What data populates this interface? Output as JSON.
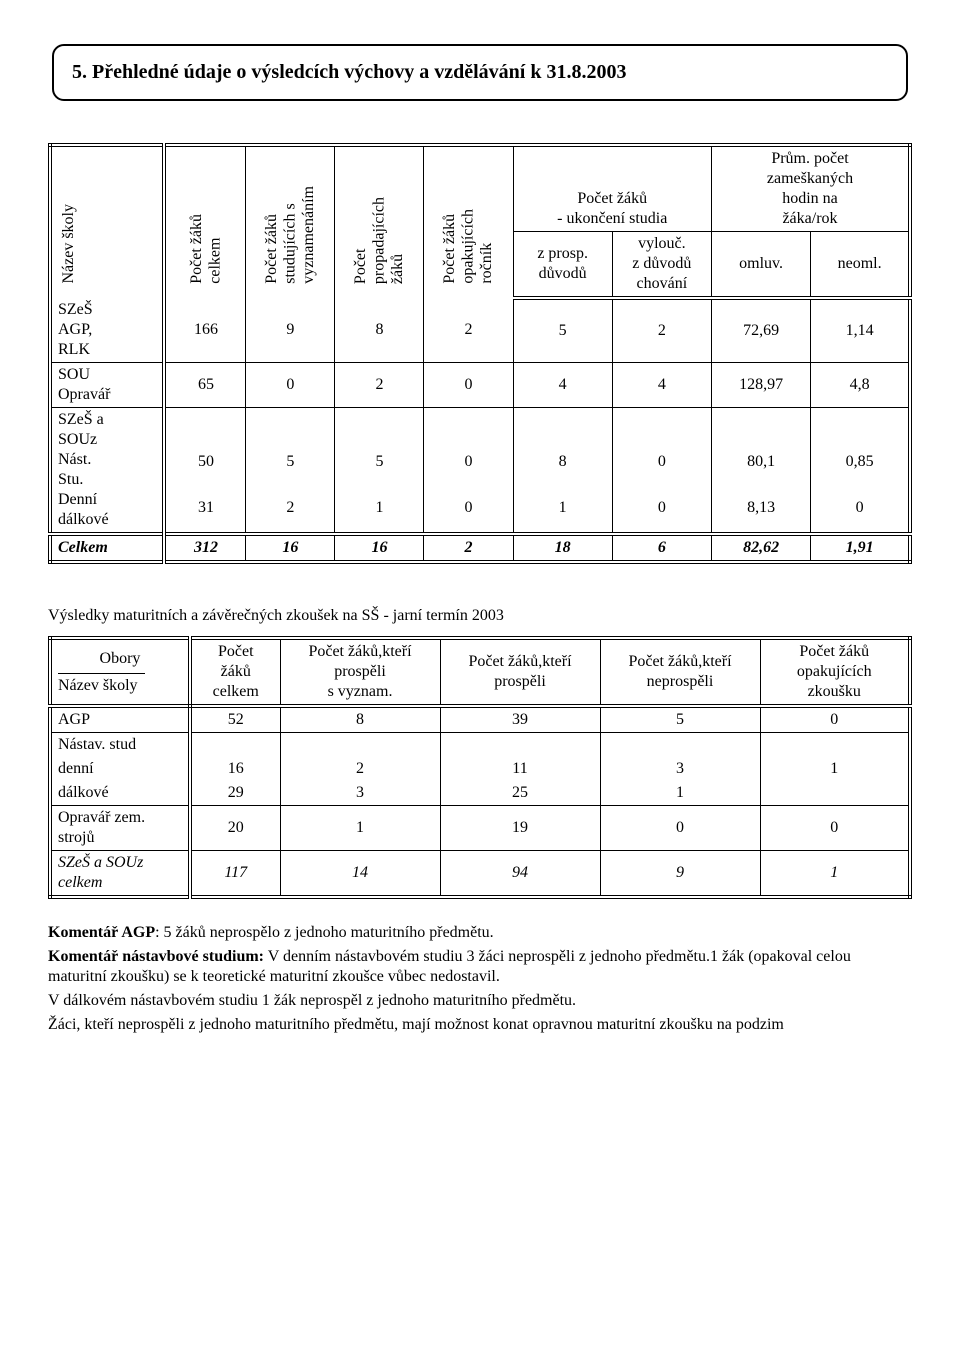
{
  "title": "5. Přehledné údaje o výsledcích výchovy a vzdělávání k 31.8.2003",
  "main_table": {
    "type": "table",
    "columns": [
      {
        "key": "nazev",
        "label": "Název školy",
        "rotated": true,
        "rowheader": true
      },
      {
        "key": "celkem",
        "label": "Počet žáků\ncelkem",
        "rotated": true
      },
      {
        "key": "vyzn",
        "label": "Počet žáků\nstudujících s\nvyznamenáním",
        "rotated": true
      },
      {
        "key": "propad",
        "label": "Počet\npropadajících\nžáků",
        "rotated": true
      },
      {
        "key": "opak",
        "label": "Počet žáků\nopakujících\nročník",
        "rotated": true
      },
      {
        "key": "uk_p",
        "group": "ukonceni",
        "label": "z prosp.\ndůvodů"
      },
      {
        "key": "uk_v",
        "group": "ukonceni",
        "label": "vylouč.\nz důvodů\nchování"
      },
      {
        "key": "zam_o",
        "group": "zameskane",
        "label": "omluv."
      },
      {
        "key": "zam_n",
        "group": "zameskane",
        "label": "neoml."
      }
    ],
    "groups": {
      "ukonceni": {
        "label": "Počet žáků\n- ukončení studia"
      },
      "zameskane": {
        "label": "Prům. počet\nzameškaných\nhodin na\nžáka/rok"
      }
    },
    "row_groups": [
      {
        "label": "SZeŠ\nAGP,\nRLK",
        "rows": [
          [
            "166",
            "9",
            "8",
            "2",
            "5",
            "2",
            "72,69",
            "1,14"
          ]
        ]
      },
      {
        "label": "SOU\nOpravář",
        "rows": [
          [
            "65",
            "0",
            "2",
            "0",
            "4",
            "4",
            "128,97",
            "4,8"
          ]
        ]
      },
      {
        "label_html": "SZeŠ a\nSOUz\nNást.\nStu.\nDenní\ndálkové",
        "label_lines": [
          "SZeŠ a",
          "SOUz",
          "Nást.",
          "Stu.",
          "Denní",
          "dálkové"
        ],
        "rows": [
          [
            "",
            "",
            "",
            "",
            "",
            "",
            "",
            ""
          ],
          [
            "",
            "",
            "",
            "",
            "",
            "",
            "",
            ""
          ],
          [
            "",
            "",
            "",
            "",
            "",
            "",
            "",
            ""
          ],
          [
            "",
            "",
            "",
            "",
            "",
            "",
            "",
            ""
          ],
          [
            "50",
            "5",
            "5",
            "0",
            "8",
            "0",
            "80,1",
            "0,85"
          ],
          [
            "31",
            "2",
            "1",
            "0",
            "1",
            "0",
            "8,13",
            "0"
          ]
        ]
      },
      {
        "label": "Celkem",
        "italic": true,
        "bold": true,
        "rows": [
          [
            "312",
            "16",
            "16",
            "2",
            "18",
            "6",
            "82,62",
            "1,91"
          ]
        ]
      }
    ]
  },
  "subheading": "Výsledky maturitních a závěrečných zkoušek na SŠ - jarní termín 2003",
  "mat_table": {
    "type": "table",
    "columns": [
      {
        "label_top": "Obory",
        "label_bottom": "Název školy",
        "rule": true
      },
      {
        "label": "Počet\nžáků\ncelkem"
      },
      {
        "label": "Počet žáků,kteří\nprospěli\ns vyznam."
      },
      {
        "label": "Počet žáků,kteří\nprospěli"
      },
      {
        "label": "Počet žáků,kteří\nneprospěli"
      },
      {
        "label": "Počet žáků\nopakujících\nzkoušku"
      }
    ],
    "rows": [
      {
        "cells": [
          "AGP",
          "52",
          "8",
          "39",
          "5",
          "0"
        ]
      },
      {
        "cells": [
          "Nástav. stud",
          "",
          "",
          "",
          "",
          ""
        ],
        "noline_bot": true
      },
      {
        "cells": [
          "denní",
          "16",
          "2",
          "11",
          "3",
          "1"
        ],
        "noline": true,
        "noline_bot": true
      },
      {
        "cells": [
          "dálkové",
          "29",
          "3",
          "25",
          "1",
          ""
        ],
        "noline": true
      },
      {
        "cells": [
          "Opravář zem.\nstrojů",
          "20",
          "1",
          "19",
          "0",
          "0"
        ]
      },
      {
        "cells": [
          "SZeŠ a SOUz\ncelkem",
          "117",
          "14",
          "94",
          "9",
          "1"
        ],
        "italic": true
      }
    ]
  },
  "paragraphs": [
    {
      "bold_prefix": "Komentář AGP",
      "text": ": 5 žáků neprospělo z jednoho maturitního předmětu."
    },
    {
      "bold_prefix": "Komentář nástavbové studium:",
      "text": " V denním nástavbovém studiu 3 žáci neprospěli z jednoho předmětu.1 žák (opakoval celou maturitní zkoušku) se k teoretické maturitní zkoušce vůbec nedostavil."
    },
    {
      "text": "V dálkovém nástavbovém studiu 1 žák neprospěl z jednoho maturitního předmětu."
    },
    {
      "text": "Žáci, kteří neprospěli z jednoho maturitního předmětu, mají možnost konat opravnou maturitní zkoušku na podzim"
    }
  ]
}
